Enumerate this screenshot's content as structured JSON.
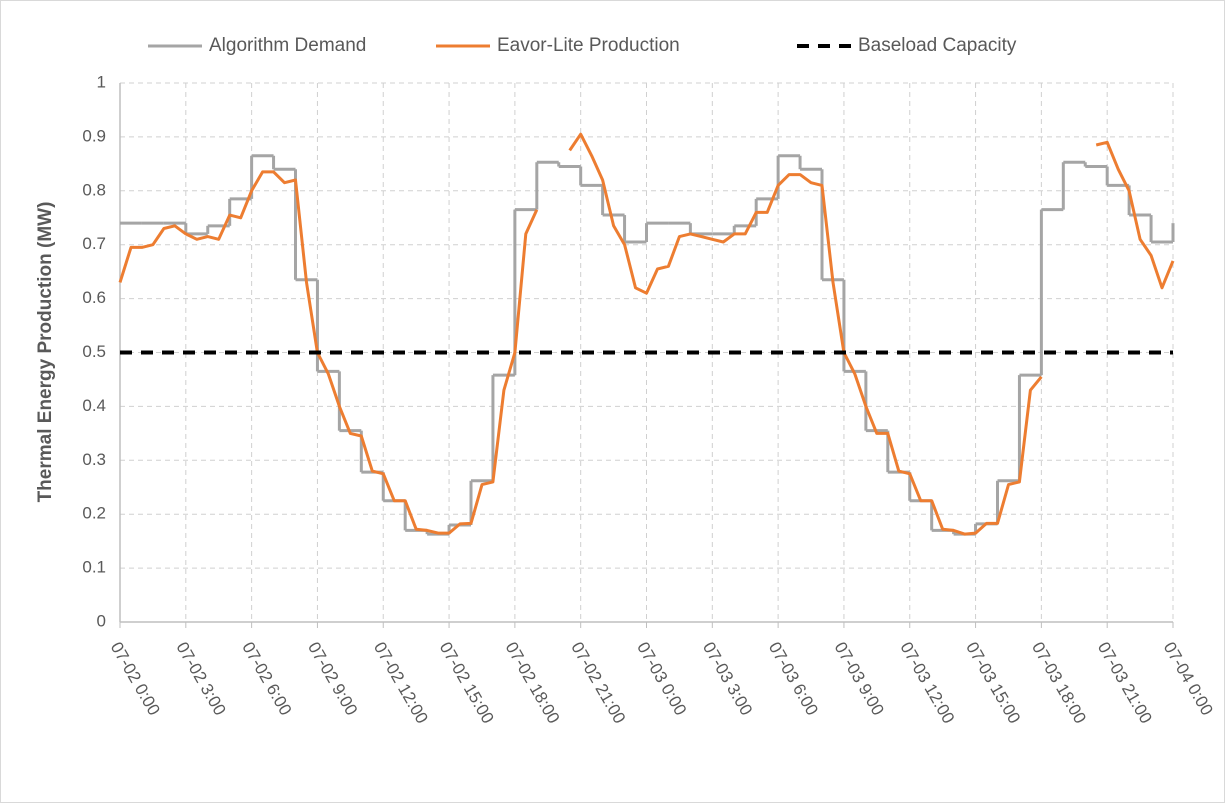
{
  "chart_data": {
    "type": "line",
    "ylabel": "Thermal Energy Production (MW)",
    "xlim": [
      "07-02 0:00",
      "07-04 0:00"
    ],
    "xticks": [
      "07-02 0:00",
      "07-02 3:00",
      "07-02 6:00",
      "07-02 9:00",
      "07-02 12:00",
      "07-02 15:00",
      "07-02 18:00",
      "07-02 21:00",
      "07-03 0:00",
      "07-03 3:00",
      "07-03 6:00",
      "07-03 9:00",
      "07-03 12:00",
      "07-03 15:00",
      "07-03 18:00",
      "07-03 21:00",
      "07-04 0:00"
    ],
    "ylim": [
      0,
      1
    ],
    "yticks": [
      0,
      0.1,
      0.2,
      0.3,
      0.4,
      0.5,
      0.6,
      0.7,
      0.8,
      0.9,
      1
    ],
    "grid": true,
    "legend": "top",
    "series": [
      {
        "name": "Algorithm Demand",
        "color": "#a5a5a5",
        "step": true,
        "x": [
          "07-02 0:00",
          "07-02 1:00",
          "07-02 2:00",
          "07-02 3:00",
          "07-02 4:00",
          "07-02 5:00",
          "07-02 6:00",
          "07-02 7:00",
          "07-02 8:00",
          "07-02 9:00",
          "07-02 10:00",
          "07-02 11:00",
          "07-02 12:00",
          "07-02 13:00",
          "07-02 14:00",
          "07-02 15:00",
          "07-02 16:00",
          "07-02 17:00",
          "07-02 18:00",
          "07-02 19:00",
          "07-02 20:00",
          "07-02 21:00",
          "07-02 22:00",
          "07-02 23:00",
          "07-03 0:00",
          "07-03 1:00",
          "07-03 2:00",
          "07-03 3:00",
          "07-03 4:00",
          "07-03 5:00",
          "07-03 6:00",
          "07-03 7:00",
          "07-03 8:00",
          "07-03 9:00",
          "07-03 10:00",
          "07-03 11:00",
          "07-03 12:00",
          "07-03 13:00",
          "07-03 14:00",
          "07-03 15:00",
          "07-03 16:00",
          "07-03 17:00",
          "07-03 18:00",
          "07-03 19:00",
          "07-03 20:00",
          "07-03 21:00",
          "07-03 22:00",
          "07-03 23:00",
          "07-04 0:00"
        ],
        "values": [
          0.74,
          0.74,
          0.74,
          0.72,
          0.735,
          0.785,
          0.865,
          0.84,
          0.635,
          0.465,
          0.355,
          0.278,
          0.225,
          0.17,
          0.163,
          0.18,
          0.262,
          0.458,
          0.765,
          0.853,
          0.845,
          0.81,
          0.755,
          0.705,
          0.74,
          0.74,
          0.72,
          0.72,
          0.735,
          0.785,
          0.865,
          0.84,
          0.635,
          0.465,
          0.355,
          0.278,
          0.225,
          0.17,
          0.163,
          0.182,
          0.262,
          0.458,
          0.765,
          0.853,
          0.845,
          0.81,
          0.755,
          0.705,
          0.74
        ]
      },
      {
        "name": "Eavor-Lite Production",
        "color": "#ed7d31",
        "x": [
          "07-02 0:00",
          "07-02 0:30",
          "07-02 1:00",
          "07-02 1:30",
          "07-02 2:00",
          "07-02 2:30",
          "07-02 3:00",
          "07-02 3:30",
          "07-02 4:00",
          "07-02 4:30",
          "07-02 5:00",
          "07-02 5:30",
          "07-02 6:00",
          "07-02 6:30",
          "07-02 7:00",
          "07-02 7:30",
          "07-02 8:00",
          "07-02 8:30",
          "07-02 9:00",
          "07-02 9:30",
          "07-02 10:00",
          "07-02 10:30",
          "07-02 11:00",
          "07-02 11:30",
          "07-02 12:00",
          "07-02 12:30",
          "07-02 13:00",
          "07-02 13:30",
          "07-02 14:00",
          "07-02 14:30",
          "07-02 15:00",
          "07-02 15:30",
          "07-02 16:00",
          "07-02 16:30",
          "07-02 17:00",
          "07-02 17:30",
          "07-02 18:00",
          "07-02 18:30",
          "07-02 19:00",
          "07-02 19:30",
          "07-02 20:00",
          "07-02 20:30",
          "07-02 21:00",
          "07-02 21:30",
          "07-02 22:00",
          "07-02 22:30",
          "07-02 23:00",
          "07-02 23:30",
          "07-03 0:00",
          "07-03 0:30",
          "07-03 1:00",
          "07-03 1:30",
          "07-03 2:00",
          "07-03 2:30",
          "07-03 3:00",
          "07-03 3:30",
          "07-03 4:00",
          "07-03 4:30",
          "07-03 5:00",
          "07-03 5:30",
          "07-03 6:00",
          "07-03 6:30",
          "07-03 7:00",
          "07-03 7:30",
          "07-03 8:00",
          "07-03 8:30",
          "07-03 9:00",
          "07-03 9:30",
          "07-03 10:00",
          "07-03 10:30",
          "07-03 11:00",
          "07-03 11:30",
          "07-03 12:00",
          "07-03 12:30",
          "07-03 13:00",
          "07-03 13:30",
          "07-03 14:00",
          "07-03 14:30",
          "07-03 15:00",
          "07-03 15:30",
          "07-03 16:00",
          "07-03 16:30",
          "07-03 17:00",
          "07-03 17:30",
          "07-03 18:00",
          "07-03 18:30",
          "07-03 19:00",
          "07-03 19:30",
          "07-03 20:00",
          "07-03 20:30",
          "07-03 21:00",
          "07-03 21:30",
          "07-03 22:00",
          "07-03 22:30",
          "07-03 23:00",
          "07-03 23:30",
          "07-04 0:00"
        ],
        "values": [
          0.63,
          0.695,
          0.695,
          0.7,
          0.73,
          0.735,
          0.72,
          0.71,
          0.715,
          0.71,
          0.755,
          0.75,
          0.8,
          0.835,
          0.835,
          0.815,
          0.82,
          0.63,
          0.5,
          0.46,
          0.4,
          0.35,
          0.345,
          0.28,
          0.275,
          0.225,
          0.225,
          0.172,
          0.17,
          0.165,
          0.165,
          0.182,
          0.183,
          0.255,
          0.26,
          0.43,
          0.5,
          0.72,
          0.765,
          null,
          null,
          0.875,
          0.905,
          0.865,
          0.82,
          0.735,
          0.7,
          0.62,
          0.61,
          0.655,
          0.66,
          0.715,
          0.72,
          0.715,
          0.71,
          0.705,
          0.72,
          0.72,
          0.76,
          0.76,
          0.81,
          0.83,
          0.83,
          0.815,
          0.81,
          0.63,
          0.5,
          0.46,
          0.4,
          0.35,
          0.35,
          0.28,
          0.275,
          0.225,
          0.225,
          0.172,
          0.17,
          0.163,
          0.165,
          0.183,
          0.183,
          0.255,
          0.26,
          0.43,
          0.455,
          null,
          null,
          null,
          null,
          0.885,
          0.89,
          0.84,
          0.8,
          0.71,
          0.68,
          0.62,
          0.67
        ]
      }
    ],
    "reference_line": {
      "name": "Baseload Capacity",
      "value": 0.5,
      "color": "#000000",
      "dashed": true
    }
  }
}
